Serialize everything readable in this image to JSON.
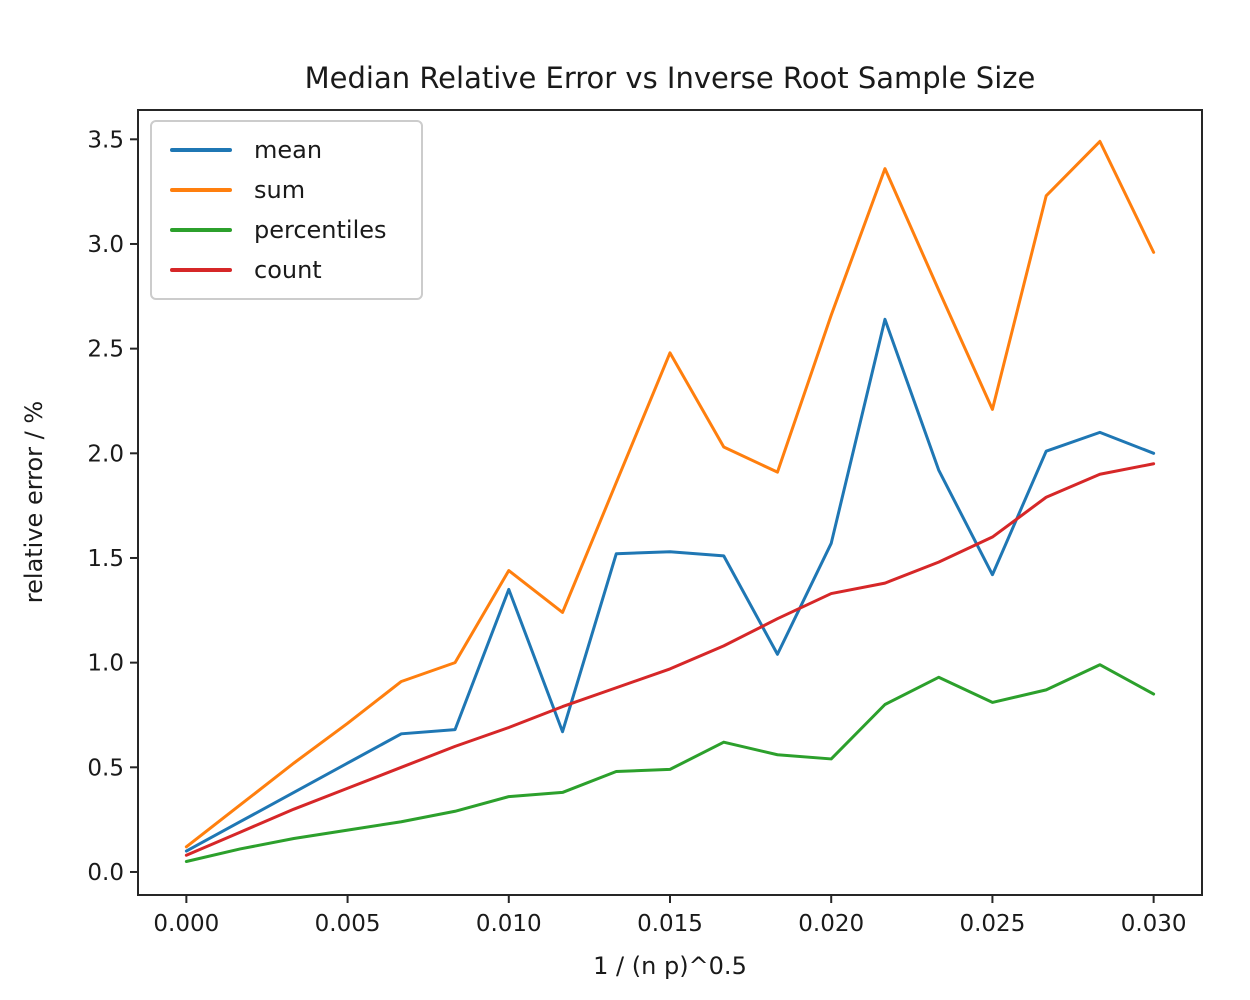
{
  "figure": {
    "title": "Median Relative Error vs Inverse Root Sample Size"
  },
  "chart_data": {
    "type": "line",
    "title": "Median Relative Error vs Inverse Root Sample Size",
    "xlabel": "1 / (n p)^0.5",
    "ylabel": "relative error / %",
    "grid": false,
    "legend_position": "upper left",
    "xlim": [
      -0.0015,
      0.0315
    ],
    "ylim": [
      -0.11,
      3.64
    ],
    "x": [
      0.0,
      0.001667,
      0.003333,
      0.005,
      0.006667,
      0.008333,
      0.01,
      0.011667,
      0.013333,
      0.015,
      0.016667,
      0.018333,
      0.02,
      0.021667,
      0.023333,
      0.025,
      0.026667,
      0.028333,
      0.03
    ],
    "series": [
      {
        "name": "mean",
        "color": "#1f77b4",
        "values": [
          0.1,
          0.24,
          0.38,
          0.52,
          0.66,
          0.68,
          1.35,
          0.67,
          1.52,
          1.53,
          1.51,
          1.04,
          1.57,
          2.64,
          1.92,
          1.42,
          2.01,
          2.1,
          2.0
        ]
      },
      {
        "name": "sum",
        "color": "#ff7f0e",
        "values": [
          0.12,
          0.32,
          0.52,
          0.71,
          0.91,
          1.0,
          1.44,
          1.24,
          1.86,
          2.48,
          2.03,
          1.91,
          2.66,
          3.36,
          2.78,
          2.21,
          3.23,
          3.49,
          2.96
        ]
      },
      {
        "name": "percentiles",
        "color": "#2ca02c",
        "values": [
          0.05,
          0.11,
          0.16,
          0.2,
          0.24,
          0.29,
          0.36,
          0.38,
          0.48,
          0.49,
          0.62,
          0.56,
          0.54,
          0.8,
          0.93,
          0.81,
          0.87,
          0.99,
          0.85
        ]
      },
      {
        "name": "count",
        "color": "#d62728",
        "values": [
          0.08,
          0.19,
          0.3,
          0.4,
          0.5,
          0.6,
          0.69,
          0.79,
          0.88,
          0.97,
          1.08,
          1.21,
          1.33,
          1.38,
          1.48,
          1.6,
          1.79,
          1.9,
          1.95
        ]
      }
    ],
    "xticks": {
      "values": [
        0.0,
        0.005,
        0.01,
        0.015,
        0.02,
        0.025,
        0.03
      ],
      "labels": [
        "0.000",
        "0.005",
        "0.010",
        "0.015",
        "0.020",
        "0.025",
        "0.030"
      ]
    },
    "yticks": {
      "values": [
        0.0,
        0.5,
        1.0,
        1.5,
        2.0,
        2.5,
        3.0,
        3.5
      ],
      "labels": [
        "0.0",
        "0.5",
        "1.0",
        "1.5",
        "2.0",
        "2.5",
        "3.0",
        "3.5"
      ]
    }
  }
}
